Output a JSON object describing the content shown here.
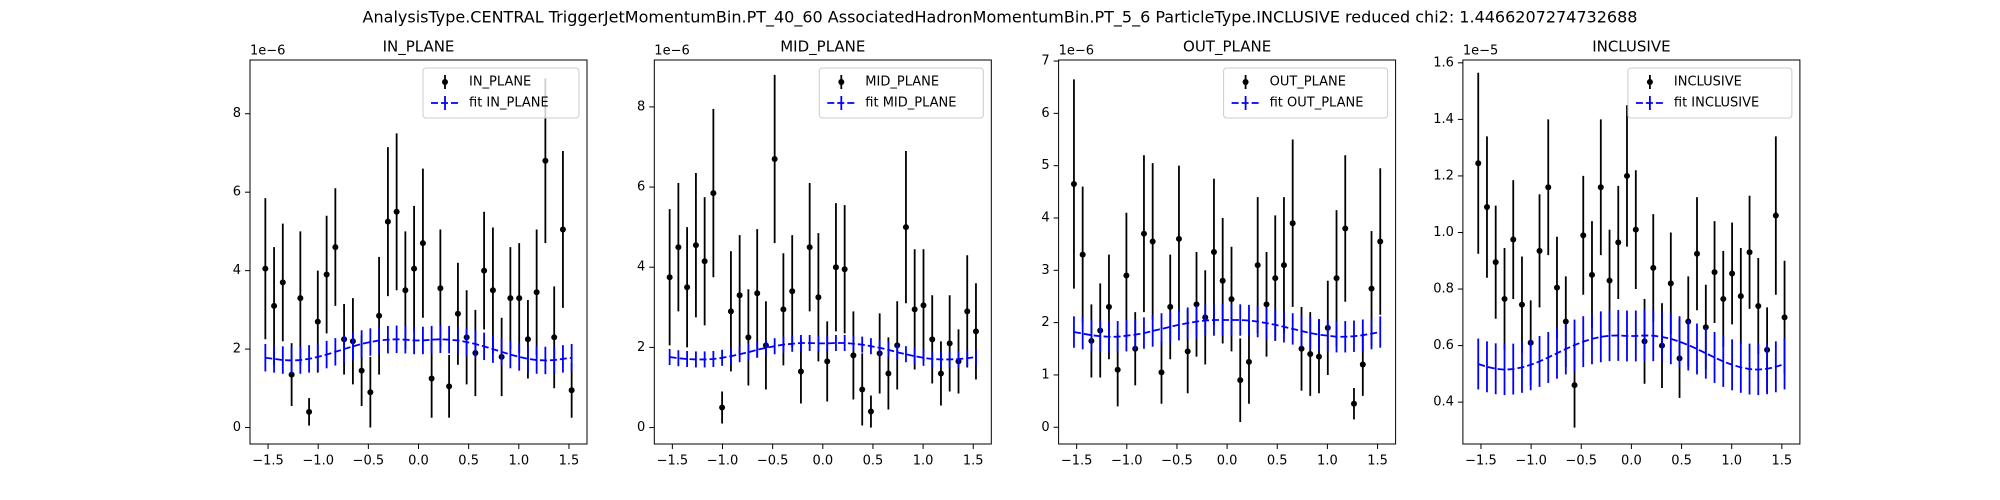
{
  "figure_title": "AnalysisType.CENTRAL TriggerJetMomentumBin.PT_40_60 AssociatedHadronMomentumBin.PT_5_6 ParticleType.INCLUSIVE reduced chi2: 1.4466207274732688",
  "chart_data": [
    {
      "type": "errorbar",
      "title": "IN_PLANE",
      "offset_text": "1e−6",
      "legend": "upper right",
      "x": [
        -1.527,
        -1.44,
        -1.353,
        -1.265,
        -1.178,
        -1.091,
        -1.004,
        -0.916,
        -0.829,
        -0.742,
        -0.654,
        -0.567,
        -0.48,
        -0.393,
        -0.305,
        -0.218,
        -0.131,
        -0.044,
        0.044,
        0.131,
        0.218,
        0.305,
        0.393,
        0.48,
        0.567,
        0.654,
        0.742,
        0.829,
        0.916,
        1.004,
        1.091,
        1.178,
        1.265,
        1.353,
        1.44,
        1.527
      ],
      "series": [
        {
          "name": "IN_PLANE",
          "color": "#000000",
          "values": [
            4.05,
            3.1,
            3.7,
            1.35,
            3.3,
            0.4,
            2.7,
            3.9,
            4.6,
            2.25,
            2.2,
            1.45,
            0.9,
            2.85,
            5.25,
            5.5,
            3.5,
            4.05,
            4.7,
            1.25,
            3.55,
            1.05,
            2.9,
            2.3,
            1.9,
            4.0,
            3.5,
            1.8,
            3.3,
            3.3,
            2.25,
            3.45,
            6.8,
            2.3,
            5.05,
            0.95
          ],
          "errors": [
            1.8,
            1.5,
            1.5,
            0.8,
            1.7,
            0.35,
            1.3,
            1.5,
            1.5,
            0.9,
            1.1,
            0.9,
            0.9,
            1.5,
            1.9,
            2.0,
            1.5,
            1.6,
            1.9,
            1.0,
            1.5,
            0.8,
            1.3,
            1.2,
            1.1,
            1.5,
            1.6,
            1.0,
            1.3,
            1.4,
            1.0,
            1.6,
            2.1,
            1.3,
            2.0,
            0.7
          ]
        },
        {
          "name": "fit IN_PLANE",
          "color": "#0000ff",
          "linestyle": "dashed",
          "values": [
            1.78,
            1.75,
            1.72,
            1.71,
            1.72,
            1.75,
            1.8,
            1.86,
            1.93,
            2.0,
            2.07,
            2.13,
            2.18,
            2.22,
            2.24,
            2.25,
            2.24,
            2.22,
            2.22,
            2.24,
            2.25,
            2.24,
            2.22,
            2.18,
            2.13,
            2.07,
            2.0,
            1.93,
            1.86,
            1.8,
            1.75,
            1.72,
            1.71,
            1.72,
            1.75,
            1.78
          ],
          "errors": [
            0.35,
            0.35,
            0.35,
            0.35,
            0.35,
            0.35,
            0.35,
            0.35,
            0.35,
            0.35,
            0.35,
            0.35,
            0.35,
            0.35,
            0.35,
            0.35,
            0.35,
            0.35,
            0.35,
            0.35,
            0.35,
            0.35,
            0.35,
            0.35,
            0.35,
            0.35,
            0.35,
            0.35,
            0.35,
            0.35,
            0.35,
            0.35,
            0.35,
            0.35,
            0.35,
            0.35
          ]
        }
      ],
      "xlim": [
        -1.68,
        1.68
      ],
      "ylim": [
        -0.42,
        9.37
      ],
      "xticks": [
        {
          "value": -1.5,
          "label": "−1.5"
        },
        {
          "value": -1,
          "label": "−1.0"
        },
        {
          "value": -0.5,
          "label": "−0.5"
        },
        {
          "value": 0,
          "label": "0.0"
        },
        0.5,
        {
          "value": 1,
          "label": "1.0"
        },
        1.5
      ],
      "yticks": [
        0,
        2,
        4,
        6,
        8
      ]
    },
    {
      "type": "errorbar",
      "title": "MID_PLANE",
      "offset_text": "1e−6",
      "legend": "upper right",
      "x": [
        -1.527,
        -1.44,
        -1.353,
        -1.265,
        -1.178,
        -1.091,
        -1.004,
        -0.916,
        -0.829,
        -0.742,
        -0.654,
        -0.567,
        -0.48,
        -0.393,
        -0.305,
        -0.218,
        -0.131,
        -0.044,
        0.044,
        0.131,
        0.218,
        0.305,
        0.393,
        0.48,
        0.567,
        0.654,
        0.742,
        0.829,
        0.916,
        1.004,
        1.091,
        1.178,
        1.265,
        1.353,
        1.44,
        1.527
      ],
      "series": [
        {
          "name": "MID_PLANE",
          "color": "#000000",
          "values": [
            3.75,
            4.5,
            3.5,
            4.55,
            4.15,
            5.85,
            0.5,
            2.9,
            3.3,
            2.25,
            3.35,
            2.05,
            6.7,
            2.95,
            3.4,
            1.4,
            4.5,
            3.25,
            1.65,
            4.0,
            3.95,
            1.8,
            0.95,
            0.4,
            1.85,
            1.35,
            2.05,
            5.0,
            2.95,
            3.05,
            2.2,
            1.35,
            2.1,
            1.65,
            2.9,
            2.4
          ],
          "errors": [
            1.7,
            1.6,
            1.5,
            1.8,
            1.6,
            2.1,
            0.4,
            1.5,
            1.5,
            1.2,
            1.6,
            1.1,
            2.1,
            1.4,
            1.4,
            0.8,
            1.6,
            1.6,
            1.0,
            1.6,
            1.6,
            1.1,
            0.9,
            0.4,
            1.0,
            0.9,
            1.1,
            1.9,
            1.5,
            1.4,
            1.1,
            0.8,
            1.2,
            0.8,
            1.4,
            1.2
          ]
        },
        {
          "name": "fit MID_PLANE",
          "color": "#0000ff",
          "linestyle": "dashed",
          "values": [
            1.76,
            1.73,
            1.71,
            1.7,
            1.7,
            1.71,
            1.74,
            1.78,
            1.83,
            1.88,
            1.94,
            1.99,
            2.03,
            2.07,
            2.09,
            2.11,
            2.11,
            2.1,
            2.1,
            2.11,
            2.11,
            2.09,
            2.07,
            2.03,
            1.99,
            1.94,
            1.88,
            1.83,
            1.78,
            1.74,
            1.71,
            1.7,
            1.7,
            1.71,
            1.73,
            1.76
          ],
          "errors": [
            0.2,
            0.2,
            0.2,
            0.2,
            0.2,
            0.2,
            0.2,
            0.2,
            0.2,
            0.2,
            0.2,
            0.2,
            0.2,
            0.2,
            0.2,
            0.2,
            0.2,
            0.2,
            0.2,
            0.2,
            0.2,
            0.2,
            0.2,
            0.2,
            0.2,
            0.2,
            0.2,
            0.2,
            0.2,
            0.2,
            0.2,
            0.2,
            0.2,
            0.2,
            0.2,
            0.2
          ]
        }
      ],
      "xlim": [
        -1.68,
        1.68
      ],
      "ylim": [
        -0.41,
        9.17
      ],
      "xticks": [
        {
          "value": -1.5,
          "label": "−1.5"
        },
        {
          "value": -1,
          "label": "−1.0"
        },
        {
          "value": -0.5,
          "label": "−0.5"
        },
        {
          "value": 0,
          "label": "0.0"
        },
        0.5,
        {
          "value": 1,
          "label": "1.0"
        },
        1.5
      ],
      "yticks": [
        0,
        2,
        4,
        6,
        8
      ]
    },
    {
      "type": "errorbar",
      "title": "OUT_PLANE",
      "offset_text": "1e−6",
      "legend": "upper right",
      "x": [
        -1.527,
        -1.44,
        -1.353,
        -1.265,
        -1.178,
        -1.091,
        -1.004,
        -0.916,
        -0.829,
        -0.742,
        -0.654,
        -0.567,
        -0.48,
        -0.393,
        -0.305,
        -0.218,
        -0.131,
        -0.044,
        0.044,
        0.131,
        0.218,
        0.305,
        0.393,
        0.48,
        0.567,
        0.654,
        0.742,
        0.829,
        0.916,
        1.004,
        1.091,
        1.178,
        1.265,
        1.353,
        1.44,
        1.527
      ],
      "series": [
        {
          "name": "OUT_PLANE",
          "color": "#000000",
          "values": [
            4.65,
            3.3,
            1.65,
            1.85,
            2.3,
            1.1,
            2.9,
            1.5,
            3.7,
            3.55,
            1.05,
            2.3,
            3.6,
            1.45,
            2.35,
            2.1,
            3.35,
            2.8,
            2.45,
            0.9,
            1.25,
            3.1,
            2.35,
            2.85,
            3.1,
            3.9,
            1.5,
            1.4,
            1.35,
            1.9,
            2.85,
            3.8,
            0.45,
            1.2,
            2.65,
            3.55
          ],
          "errors": [
            2.0,
            1.3,
            0.7,
            0.9,
            1.0,
            0.7,
            1.2,
            0.7,
            1.5,
            1.5,
            0.6,
            1.0,
            1.4,
            0.8,
            1.0,
            0.9,
            1.4,
            1.2,
            1.0,
            0.8,
            0.8,
            1.3,
            1.0,
            1.2,
            1.3,
            1.6,
            0.8,
            0.8,
            0.7,
            0.9,
            1.3,
            1.4,
            0.3,
            0.6,
            1.1,
            1.4
          ]
        },
        {
          "name": "fit OUT_PLANE",
          "color": "#0000ff",
          "linestyle": "dashed",
          "values": [
            1.82,
            1.79,
            1.76,
            1.74,
            1.73,
            1.73,
            1.75,
            1.77,
            1.8,
            1.84,
            1.88,
            1.92,
            1.96,
            1.99,
            2.02,
            2.04,
            2.05,
            2.05,
            2.05,
            2.05,
            2.04,
            2.02,
            1.99,
            1.96,
            1.92,
            1.88,
            1.84,
            1.8,
            1.77,
            1.75,
            1.73,
            1.73,
            1.74,
            1.76,
            1.79,
            1.82
          ],
          "errors": [
            0.3,
            0.3,
            0.3,
            0.3,
            0.3,
            0.3,
            0.3,
            0.3,
            0.3,
            0.3,
            0.3,
            0.3,
            0.3,
            0.3,
            0.3,
            0.3,
            0.3,
            0.3,
            0.3,
            0.3,
            0.3,
            0.3,
            0.3,
            0.3,
            0.3,
            0.3,
            0.3,
            0.3,
            0.3,
            0.3,
            0.3,
            0.3,
            0.3,
            0.3,
            0.3,
            0.3
          ]
        }
      ],
      "xlim": [
        -1.68,
        1.68
      ],
      "ylim": [
        -0.32,
        7.02
      ],
      "xticks": [
        {
          "value": -1.5,
          "label": "−1.5"
        },
        {
          "value": -1,
          "label": "−1.0"
        },
        {
          "value": -0.5,
          "label": "−0.5"
        },
        {
          "value": 0,
          "label": "0.0"
        },
        0.5,
        {
          "value": 1,
          "label": "1.0"
        },
        1.5
      ],
      "yticks": [
        0,
        1,
        2,
        3,
        4,
        5,
        6,
        7
      ]
    },
    {
      "type": "errorbar",
      "title": "INCLUSIVE",
      "offset_text": "1e−5",
      "legend": "upper right",
      "x": [
        -1.527,
        -1.44,
        -1.353,
        -1.265,
        -1.178,
        -1.091,
        -1.004,
        -0.916,
        -0.829,
        -0.742,
        -0.654,
        -0.567,
        -0.48,
        -0.393,
        -0.305,
        -0.218,
        -0.131,
        -0.044,
        0.044,
        0.131,
        0.218,
        0.305,
        0.393,
        0.48,
        0.567,
        0.654,
        0.742,
        0.829,
        0.916,
        1.004,
        1.091,
        1.178,
        1.265,
        1.353,
        1.44,
        1.527
      ],
      "series": [
        {
          "name": "INCLUSIVE",
          "color": "#000000",
          "values": [
            1.245,
            1.09,
            0.895,
            0.765,
            0.975,
            0.745,
            0.61,
            0.935,
            1.16,
            0.805,
            0.685,
            0.46,
            0.99,
            0.85,
            1.16,
            0.83,
            0.965,
            1.2,
            1.01,
            0.615,
            0.875,
            0.6,
            0.82,
            0.555,
            0.685,
            0.925,
            0.665,
            0.86,
            0.765,
            0.855,
            0.775,
            0.93,
            0.74,
            0.585,
            1.06,
            0.7
          ],
          "errors": [
            0.32,
            0.25,
            0.2,
            0.18,
            0.21,
            0.17,
            0.15,
            0.2,
            0.24,
            0.18,
            0.16,
            0.15,
            0.21,
            0.19,
            0.24,
            0.18,
            0.2,
            0.25,
            0.21,
            0.15,
            0.19,
            0.15,
            0.18,
            0.14,
            0.16,
            0.2,
            0.15,
            0.18,
            0.17,
            0.18,
            0.17,
            0.2,
            0.17,
            0.15,
            0.28,
            0.2
          ]
        },
        {
          "name": "fit INCLUSIVE",
          "color": "#0000ff",
          "linestyle": "dashed",
          "values": [
            0.535,
            0.525,
            0.518,
            0.515,
            0.517,
            0.523,
            0.532,
            0.544,
            0.558,
            0.573,
            0.588,
            0.602,
            0.614,
            0.624,
            0.631,
            0.635,
            0.636,
            0.634,
            0.634,
            0.636,
            0.635,
            0.631,
            0.624,
            0.614,
            0.602,
            0.588,
            0.573,
            0.558,
            0.544,
            0.532,
            0.523,
            0.517,
            0.515,
            0.518,
            0.525,
            0.535
          ],
          "errors": [
            0.09,
            0.09,
            0.09,
            0.09,
            0.09,
            0.09,
            0.09,
            0.09,
            0.09,
            0.09,
            0.09,
            0.09,
            0.09,
            0.09,
            0.09,
            0.09,
            0.09,
            0.09,
            0.09,
            0.09,
            0.09,
            0.09,
            0.09,
            0.09,
            0.09,
            0.09,
            0.09,
            0.09,
            0.09,
            0.09,
            0.09,
            0.09,
            0.09,
            0.09,
            0.09,
            0.09
          ]
        }
      ],
      "xlim": [
        -1.68,
        1.68
      ],
      "ylim": [
        0.252,
        1.61
      ],
      "xticks": [
        {
          "value": -1.5,
          "label": "−1.5"
        },
        {
          "value": -1,
          "label": "−1.0"
        },
        {
          "value": -0.5,
          "label": "−0.5"
        },
        {
          "value": 0,
          "label": "0.0"
        },
        0.5,
        {
          "value": 1,
          "label": "1.0"
        },
        1.5
      ],
      "yticks": [
        0.4,
        0.6,
        0.8,
        {
          "value": 1,
          "label": "1.0"
        },
        1.2,
        1.4,
        1.6
      ]
    }
  ]
}
